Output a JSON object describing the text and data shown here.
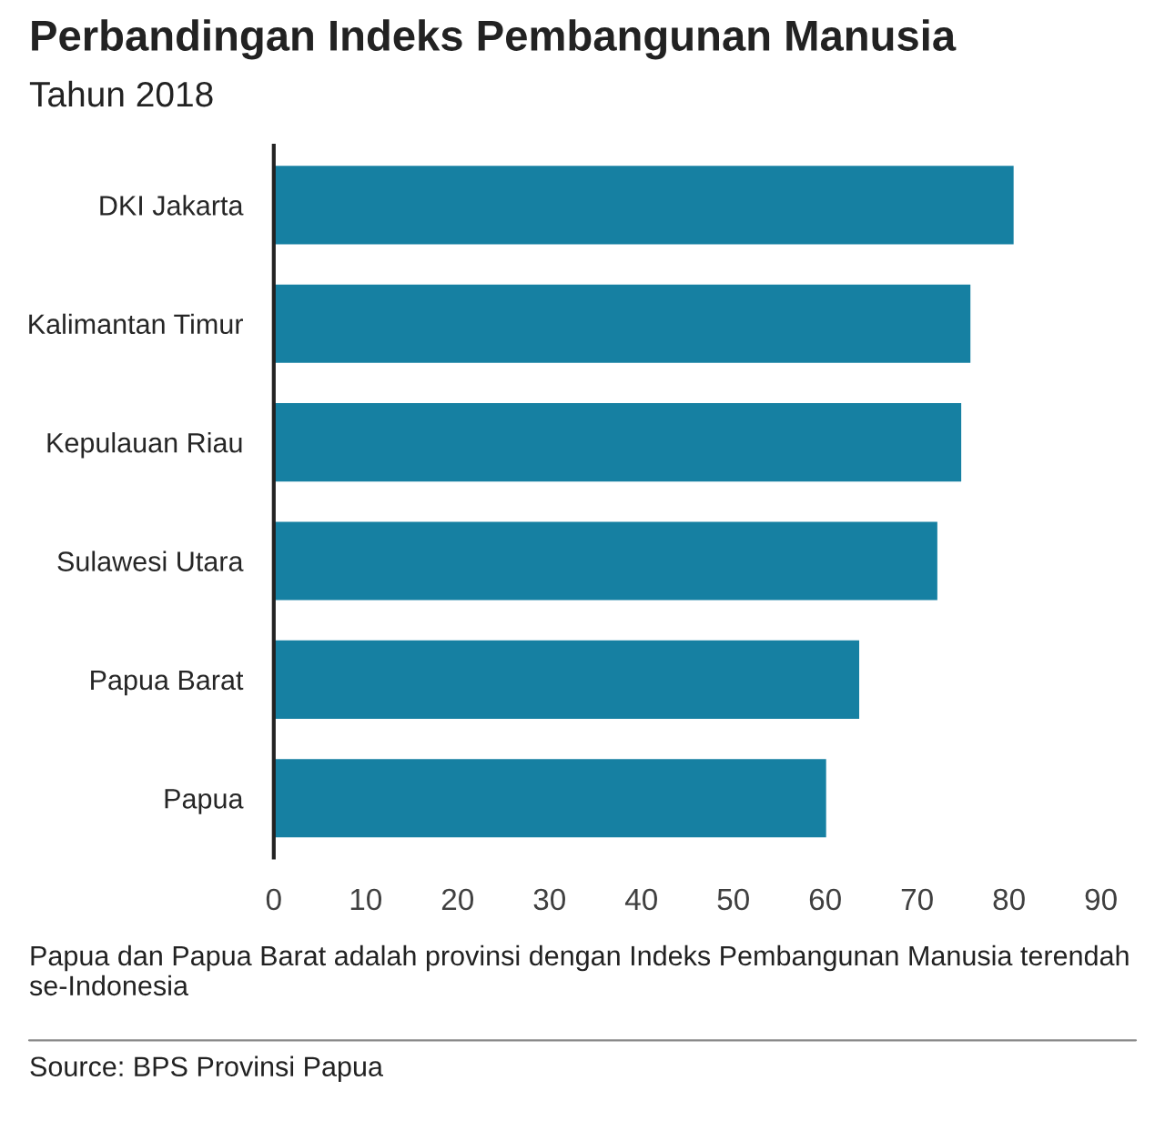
{
  "chart_data": {
    "type": "bar",
    "orientation": "horizontal",
    "title": "Perbandingan Indeks Pembangunan Manusia",
    "subtitle": "Tahun 2018",
    "categories": [
      "DKI Jakarta",
      "Kalimantan Timur",
      "Kepulauan Riau",
      "Sulawesi Utara",
      "Papua Barat",
      "Papua"
    ],
    "values": [
      80.5,
      75.8,
      74.8,
      72.2,
      63.7,
      60.1
    ],
    "color": "#1680a2",
    "xlim": [
      0,
      90
    ],
    "xticks": [
      0,
      10,
      20,
      30,
      40,
      50,
      60,
      70,
      80,
      90
    ],
    "grid": false,
    "annotations": [
      "Papua dan Papua Barat adalah provinsi dengan Indeks Pembangunan Manusia terendah se-Indonesia",
      "Source: BPS Provinsi Papua"
    ]
  }
}
